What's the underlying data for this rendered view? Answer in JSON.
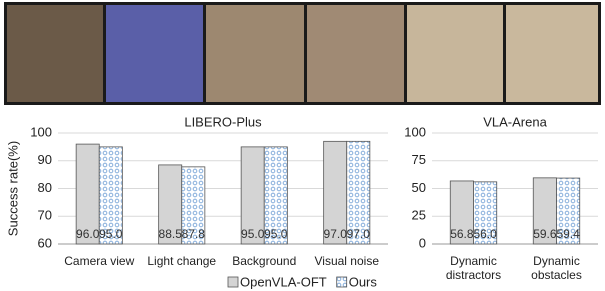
{
  "chart_data": [
    {
      "type": "bar",
      "title": "LIBERO-Plus",
      "y_label": "Success rate(%)",
      "categories": [
        "Camera view",
        "Light change",
        "Background",
        "Visual noise"
      ],
      "series": [
        {
          "name": "OpenVLA-OFT",
          "color": "#d4d4d4",
          "values": [
            96.0,
            88.5,
            95.0,
            97.0
          ],
          "value_labels": [
            "96.0",
            "88.5",
            "95.0",
            "97.0"
          ]
        },
        {
          "name": "Ours",
          "color": "#8fb4de",
          "values": [
            95.0,
            87.8,
            95.0,
            97.0
          ],
          "value_labels": [
            "95.0",
            "87.8",
            "95.0",
            "97.0"
          ]
        }
      ],
      "ylim": [
        60,
        100
      ],
      "yticks": [
        60,
        70,
        80,
        90,
        100
      ],
      "grid": true,
      "legend": "bottom"
    },
    {
      "type": "bar",
      "title": "VLA-Arena",
      "categories": [
        "Dynamic distractors",
        "Dynamic obstacles"
      ],
      "series": [
        {
          "color": "#d4d4d4",
          "values": [
            56.8,
            59.6
          ],
          "value_labels": [
            "56.8",
            "59.6"
          ]
        },
        {
          "color": "#8fb4de",
          "values": [
            56.0,
            59.4
          ],
          "value_labels": [
            "56.0",
            "59.4"
          ]
        }
      ],
      "ylim": [
        0,
        100
      ],
      "yticks": [
        0,
        25,
        50,
        75,
        100
      ],
      "grid": true
    }
  ]
}
